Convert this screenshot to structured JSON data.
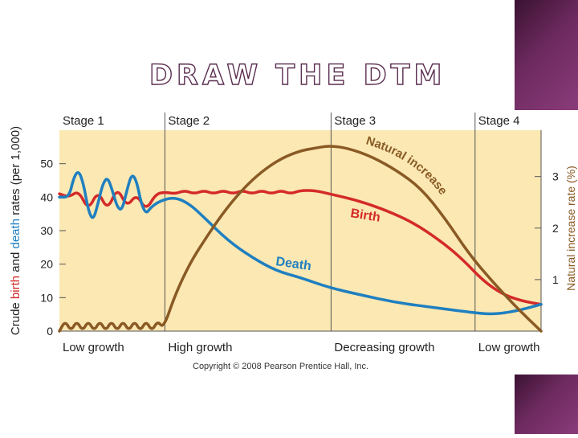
{
  "slide": {
    "title": "DRAW THE DTM",
    "accent_color": "#5a2d4f"
  },
  "chart_data": {
    "type": "line",
    "title": "",
    "ylabel_left": {
      "prefix": "Crude ",
      "birth": "birth",
      "middle": " and ",
      "death": "death",
      "suffix": " rates (per 1,000)"
    },
    "ylabel_right": "Natural increase rate (%)",
    "ylim_left": [
      0,
      60
    ],
    "ylim_right": [
      0,
      3.9
    ],
    "y_ticks_left": [
      "0",
      "10",
      "20",
      "30",
      "40",
      "50"
    ],
    "y_ticks_right": [
      "1",
      "2",
      "3"
    ],
    "xlim": [
      0,
      100
    ],
    "stage_boundaries": [
      21.9,
      56.4,
      86.3
    ],
    "stages": [
      {
        "name": "Stage 1",
        "growth": "Low growth",
        "start": 0
      },
      {
        "name": "Stage 2",
        "growth": "High growth",
        "start": 21.9
      },
      {
        "name": "Stage 3",
        "growth": "Decreasing growth",
        "start": 56.4
      },
      {
        "name": "Stage 4",
        "growth": "Low growth",
        "start": 86.3
      }
    ],
    "copyright": "Copyright © 2008 Pearson Prentice Hall, Inc.",
    "background_color": "#fbe8b3",
    "series": [
      {
        "name": "Birth",
        "color": "#d42a2a",
        "points": [
          [
            0,
            41
          ],
          [
            2,
            40
          ],
          [
            4,
            42
          ],
          [
            6,
            36
          ],
          [
            8,
            42
          ],
          [
            10,
            36
          ],
          [
            12,
            43
          ],
          [
            14,
            37
          ],
          [
            16,
            41
          ],
          [
            18,
            36
          ],
          [
            20,
            41
          ],
          [
            22,
            41.5
          ],
          [
            24,
            41
          ],
          [
            26,
            42
          ],
          [
            28,
            41
          ],
          [
            30,
            42
          ],
          [
            32,
            41
          ],
          [
            34,
            42
          ],
          [
            36,
            41
          ],
          [
            38,
            42
          ],
          [
            40,
            41
          ],
          [
            42,
            42
          ],
          [
            44,
            41
          ],
          [
            46,
            42
          ],
          [
            48,
            41
          ],
          [
            50,
            42
          ],
          [
            53,
            42
          ],
          [
            56,
            41
          ],
          [
            62,
            39
          ],
          [
            68,
            36
          ],
          [
            74,
            32
          ],
          [
            80,
            26
          ],
          [
            84,
            21
          ],
          [
            88,
            15
          ],
          [
            92,
            11
          ],
          [
            96,
            9
          ],
          [
            100,
            8
          ]
        ]
      },
      {
        "name": "Death",
        "color": "#1f7fc0",
        "points": [
          [
            0,
            40
          ],
          [
            2,
            40
          ],
          [
            3,
            46
          ],
          [
            4,
            48
          ],
          [
            5,
            44
          ],
          [
            6,
            36
          ],
          [
            7,
            33
          ],
          [
            8,
            38
          ],
          [
            9,
            44
          ],
          [
            10,
            46
          ],
          [
            11,
            42
          ],
          [
            12,
            37
          ],
          [
            13,
            36
          ],
          [
            14,
            42
          ],
          [
            15,
            47
          ],
          [
            16,
            45
          ],
          [
            17,
            38
          ],
          [
            18,
            35
          ],
          [
            19,
            37
          ],
          [
            21,
            39
          ],
          [
            24,
            40
          ],
          [
            27,
            38
          ],
          [
            30,
            34
          ],
          [
            35,
            27
          ],
          [
            40,
            22
          ],
          [
            45,
            18
          ],
          [
            50,
            16
          ],
          [
            56,
            13
          ],
          [
            62,
            11
          ],
          [
            70,
            8.5
          ],
          [
            78,
            7
          ],
          [
            86,
            5.5
          ],
          [
            90,
            5
          ],
          [
            95,
            6
          ],
          [
            100,
            8
          ]
        ]
      },
      {
        "name": "Natural increase",
        "color": "#8a5a24",
        "points": [
          [
            0,
            0
          ],
          [
            1.2,
            0.2
          ],
          [
            2.4,
            0
          ],
          [
            3.6,
            0.2
          ],
          [
            4.8,
            0
          ],
          [
            6,
            0.2
          ],
          [
            7.2,
            0
          ],
          [
            8.4,
            0.2
          ],
          [
            9.6,
            0
          ],
          [
            10.8,
            0.2
          ],
          [
            12,
            0
          ],
          [
            13.2,
            0.2
          ],
          [
            14.4,
            0
          ],
          [
            15.6,
            0.2
          ],
          [
            16.8,
            0
          ],
          [
            18,
            0.2
          ],
          [
            19.2,
            0
          ],
          [
            20.4,
            0.2
          ],
          [
            21.6,
            0.05
          ],
          [
            24,
            0.7
          ],
          [
            27,
            1.3
          ],
          [
            30,
            1.75
          ],
          [
            34,
            2.3
          ],
          [
            38,
            2.75
          ],
          [
            42,
            3.1
          ],
          [
            46,
            3.35
          ],
          [
            50,
            3.5
          ],
          [
            53,
            3.55
          ],
          [
            56,
            3.6
          ],
          [
            60,
            3.55
          ],
          [
            65,
            3.38
          ],
          [
            70,
            3.12
          ],
          [
            75,
            2.78
          ],
          [
            80,
            2.2
          ],
          [
            85,
            1.5
          ],
          [
            90,
            0.95
          ],
          [
            95,
            0.45
          ],
          [
            100,
            0
          ]
        ]
      }
    ],
    "annotations": [
      {
        "text": "Natural increase",
        "series": "Natural increase"
      },
      {
        "text": "Birth",
        "series": "Birth"
      },
      {
        "text": "Death",
        "series": "Death"
      }
    ]
  }
}
